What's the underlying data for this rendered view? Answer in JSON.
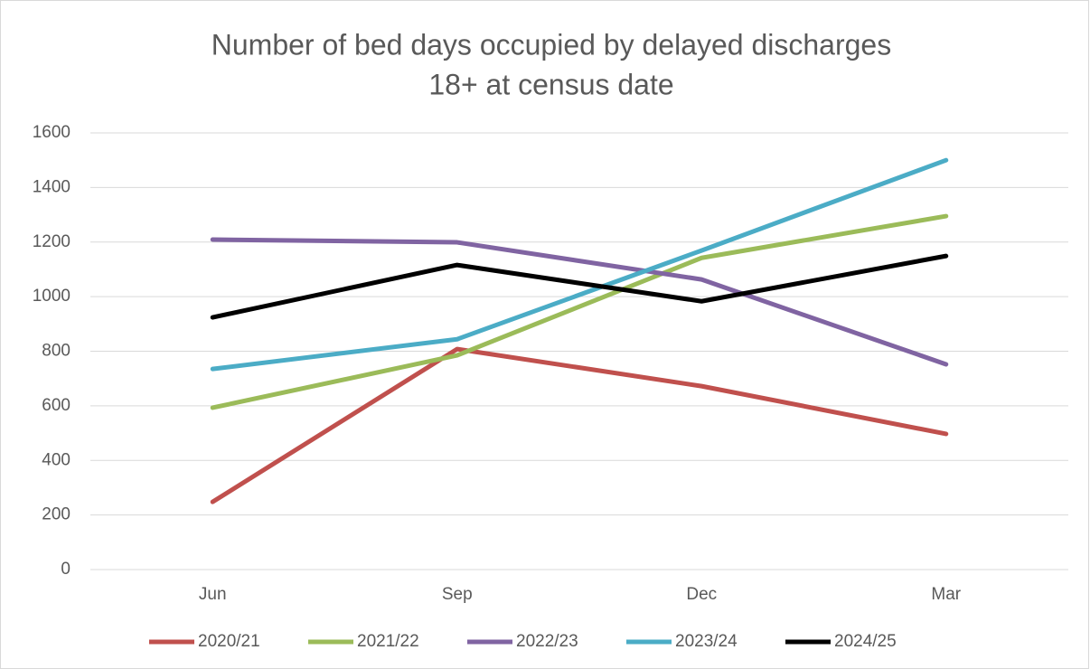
{
  "chart_data": {
    "type": "line",
    "title": [
      "Number of bed days occupied by delayed discharges",
      "18+ at census date"
    ],
    "categories": [
      "Jun",
      "Sep",
      "Dec",
      "Mar"
    ],
    "series": [
      {
        "name": "2020/21",
        "color": "#c0504d",
        "values": [
          248,
          808,
          672,
          497
        ]
      },
      {
        "name": "2021/22",
        "color": "#9bbb59",
        "values": [
          593,
          785,
          1142,
          1295
        ]
      },
      {
        "name": "2022/23",
        "color": "#8064a2",
        "values": [
          1209,
          1199,
          1063,
          752
        ]
      },
      {
        "name": "2023/24",
        "color": "#4bacc6",
        "values": [
          735,
          844,
          1169,
          1500
        ]
      },
      {
        "name": "2024/25",
        "color": "#000000",
        "values": [
          924,
          1116,
          983,
          1149
        ]
      }
    ],
    "ylim": [
      0,
      1600
    ],
    "yticks": [
      0,
      200,
      400,
      600,
      800,
      1000,
      1200,
      1400,
      1600
    ],
    "grid": true,
    "legend": "bottom"
  }
}
